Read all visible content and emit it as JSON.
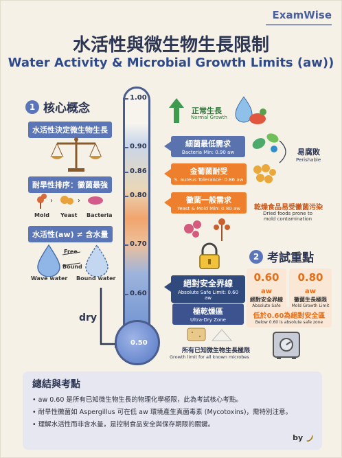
{
  "brand": "ExamWise",
  "title_zh": "水活性與微生物生長限制",
  "title_en": "Water Activity & Microbial Growth Limits (aw))",
  "section1": {
    "num": "1",
    "title": "核心概念",
    "pill1": "水活性決定微生物生長",
    "pill2": "耐旱性排序：黴菌最強",
    "order": [
      "Mold",
      "Yeast",
      "Bacteria"
    ],
    "pill3": "水活性(aw) ≠ 含水量",
    "free": "Free",
    "bound": "Bound",
    "wave_water": "Wave water",
    "bound_water": "Bound water",
    "dry": "dry"
  },
  "thermometer": {
    "ticks": [
      "1.00",
      "0.90",
      "0.86",
      "0.80",
      "0.70",
      "0.60",
      "0.50"
    ]
  },
  "right": {
    "normal_zh": "正常生長",
    "normal_en": "Normal Growth",
    "bacteria_zh": "細菌最低需求",
    "bacteria_en": "Bacteria Min: 0.90 aw",
    "perish_zh": "易腐敗",
    "perish_en": "Perishable",
    "saureus_zh": "金葡菌耐受",
    "saureus_en": "S. aureus Tolerance: 0.86 aw",
    "mold_zh": "黴菌一般需求",
    "mold_en": "Yeast & Mold Min: 0.80 aw",
    "dried_zh": "乾燥食品易受黴菌污染",
    "dried_en": "Dried foods prone to mold contamination",
    "safe_zh": "絕對安全界線",
    "safe_en": "Absolute Safe Limit: 0.60 aw",
    "ultra_zh": "極乾燥區",
    "ultra_en": "Ultra-Dry Zone",
    "limit_zh": "所有已知微生物生長極限",
    "limit_en": "Growth limit for all known microbes"
  },
  "section2": {
    "num": "2",
    "title": "考試重點",
    "card1_val": "0.60",
    "card1_unit": "aw",
    "card1_zh": "絕對安全界線",
    "card1_en": "Absolute Safe Limit",
    "card2_val": "0.80",
    "card2_unit": "aw",
    "card2_zh": "黴菌生長極限",
    "card2_en": "Mold Growth Limit",
    "rule_zh": "低於0.60為絕對安全區",
    "rule_en": "Below 0.60 is absolute safe zone"
  },
  "summary": {
    "title": "總結與考點",
    "items": [
      "aw 0.60 是所有已知微生物生長的物理化學極限，此為考試核心考點。",
      "耐旱性黴菌如 Aspergillus 可在低 aw 環境產生真菌毒素 (Mycotoxins)，需特別注意。",
      "理解水活性而非含水量，是控制食品安全與保存期限的關鍵。"
    ]
  },
  "by": "by",
  "colors": {
    "blue": "#5a72ae",
    "orange": "#ee7f2c",
    "navy": "#304a7e",
    "green": "#3d9a4e"
  }
}
